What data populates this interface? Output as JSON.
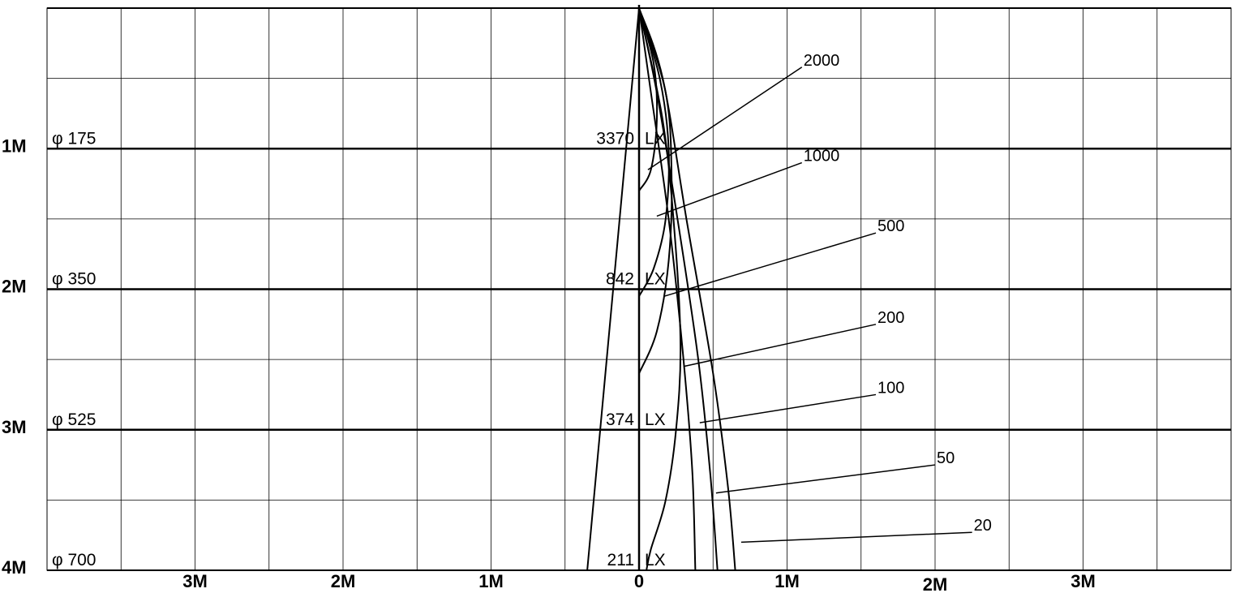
{
  "chart_data": {
    "type": "line",
    "title": "",
    "xlabel": "",
    "ylabel": "",
    "xlim": [
      -4,
      4
    ],
    "ylim": [
      0,
      4
    ],
    "grid": true,
    "x_tick_labels": [
      {
        "value": -3,
        "label": "3M"
      },
      {
        "value": -2,
        "label": "2M"
      },
      {
        "value": -1,
        "label": "1M"
      },
      {
        "value": 0,
        "label": "0"
      },
      {
        "value": 1,
        "label": "1M"
      },
      {
        "value": 2,
        "label": "2M"
      },
      {
        "value": 3,
        "label": "3M"
      }
    ],
    "distances": [
      {
        "depth": 1,
        "label": "1M",
        "diameter": "φ 175",
        "illuminance": "3370",
        "unit": "LX"
      },
      {
        "depth": 2,
        "label": "2M",
        "diameter": "φ 350",
        "illuminance": "842",
        "unit": "LX"
      },
      {
        "depth": 3,
        "label": "3M",
        "diameter": "φ 525",
        "illuminance": "374",
        "unit": "LX"
      },
      {
        "depth": 4,
        "label": "4M",
        "diameter": "φ 700",
        "illuminance": "211",
        "unit": "LX"
      }
    ],
    "beam_edge": {
      "apex": [
        0,
        0
      ],
      "bottom_x": -0.35,
      "bottom_depth": 4
    },
    "series": [
      {
        "name": "2000",
        "points": [
          [
            0,
            0
          ],
          [
            0.1,
            0.4
          ],
          [
            0.12,
            0.8
          ],
          [
            0.08,
            1.15
          ],
          [
            0,
            1.3
          ]
        ]
      },
      {
        "name": "1000",
        "points": [
          [
            0,
            0
          ],
          [
            0.14,
            0.5
          ],
          [
            0.2,
            1.0
          ],
          [
            0.18,
            1.5
          ],
          [
            0.1,
            1.85
          ],
          [
            0,
            2.05
          ]
        ]
      },
      {
        "name": "500",
        "points": [
          [
            0,
            0
          ],
          [
            0.18,
            0.6
          ],
          [
            0.22,
            1.2
          ],
          [
            0.2,
            1.8
          ],
          [
            0.12,
            2.3
          ],
          [
            0,
            2.6
          ]
        ]
      },
      {
        "name": "200",
        "points": [
          [
            0,
            0
          ],
          [
            0.16,
            0.8
          ],
          [
            0.24,
            1.6
          ],
          [
            0.28,
            2.4
          ],
          [
            0.25,
            3.0
          ],
          [
            0.18,
            3.5
          ],
          [
            0.08,
            3.85
          ],
          [
            0.05,
            4.0
          ]
        ]
      },
      {
        "name": "100",
        "points": [
          [
            0,
            0
          ],
          [
            0.08,
            0.6
          ],
          [
            0.2,
            1.5
          ],
          [
            0.3,
            2.5
          ],
          [
            0.36,
            3.3
          ],
          [
            0.38,
            4.0
          ]
        ]
      },
      {
        "name": "50",
        "points": [
          [
            0,
            0
          ],
          [
            0.12,
            0.6
          ],
          [
            0.26,
            1.5
          ],
          [
            0.4,
            2.5
          ],
          [
            0.48,
            3.3
          ],
          [
            0.53,
            4.0
          ]
        ]
      },
      {
        "name": "20",
        "points": [
          [
            0,
            0
          ],
          [
            0.16,
            0.5
          ],
          [
            0.32,
            1.5
          ],
          [
            0.5,
            2.6
          ],
          [
            0.6,
            3.4
          ],
          [
            0.65,
            4.0
          ]
        ]
      }
    ],
    "curve_labels": [
      {
        "text": "2000",
        "anchor": [
          0.06,
          1.15
        ],
        "label_pos": [
          1.1,
          0.42
        ]
      },
      {
        "text": "1000",
        "anchor": [
          0.12,
          1.48
        ],
        "label_pos": [
          1.1,
          1.1
        ]
      },
      {
        "text": "500",
        "anchor": [
          0.17,
          2.05
        ],
        "label_pos": [
          1.6,
          1.6
        ]
      },
      {
        "text": "200",
        "anchor": [
          0.3,
          2.55
        ],
        "label_pos": [
          1.6,
          2.25
        ]
      },
      {
        "text": "100",
        "anchor": [
          0.41,
          2.95
        ],
        "label_pos": [
          1.6,
          2.75
        ]
      },
      {
        "text": "50",
        "anchor": [
          0.52,
          3.45
        ],
        "label_pos": [
          2.0,
          3.25
        ]
      },
      {
        "text": "20",
        "anchor": [
          0.69,
          3.8
        ],
        "label_pos": [
          2.25,
          3.73
        ]
      }
    ]
  }
}
